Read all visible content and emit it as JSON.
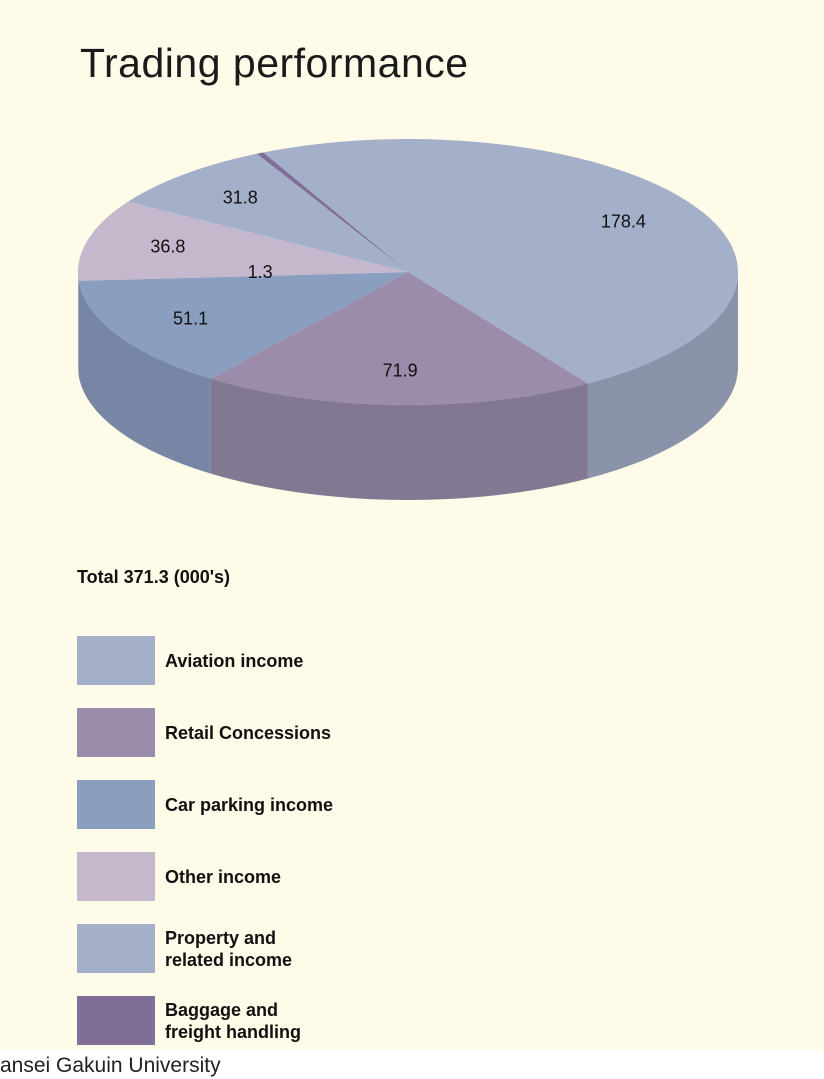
{
  "chart_data": {
    "type": "pie3d",
    "title": "Trading performance",
    "subtitle": "Total 371.3 (000's)",
    "categories": [
      "Aviation income",
      "Retail Concessions",
      "Car parking income",
      "Other income",
      "Property and\nrelated income",
      "Baggage and\nfreight handling"
    ],
    "values": [
      178.4,
      71.9,
      51.1,
      36.8,
      31.8,
      1.3
    ],
    "colors": [
      "#a4afc9",
      "#9a8caa",
      "#8a9ec0",
      "#c6b8cc",
      "#a4afc9",
      "#7f6f97"
    ],
    "source": "ansei Gakuin University"
  }
}
